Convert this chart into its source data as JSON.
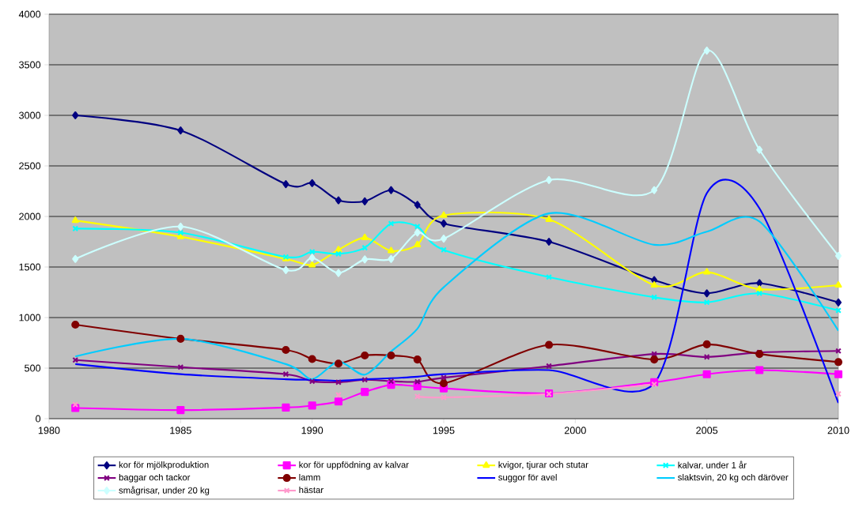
{
  "chart_data": {
    "type": "line",
    "x": [
      1981,
      1985,
      1989,
      1990,
      1991,
      1992,
      1993,
      1994,
      1995,
      1999,
      2003,
      2005,
      2007,
      2010
    ],
    "xlim": [
      1980,
      2010
    ],
    "xticks": [
      1980,
      1985,
      1990,
      1995,
      2000,
      2005,
      2010
    ],
    "ylim": [
      0,
      4000
    ],
    "yticks": [
      0,
      500,
      1000,
      1500,
      2000,
      2500,
      3000,
      3500,
      4000
    ],
    "grid": "y",
    "legend": "bottom",
    "series": [
      {
        "name": "kor för mjölkproduktion",
        "color": "#000080",
        "marker": "diamond",
        "values": [
          3000,
          2850,
          2320,
          2330,
          2160,
          2150,
          2260,
          2115,
          1930,
          1750,
          1370,
          1240,
          1340,
          1150
        ]
      },
      {
        "name": "kor för uppfödning av kalvar",
        "color": "#ff00ff",
        "marker": "square",
        "values": [
          105,
          85,
          110,
          130,
          170,
          265,
          335,
          320,
          300,
          250,
          360,
          440,
          480,
          440
        ]
      },
      {
        "name": "kvigor, tjurar och stutar",
        "color": "#ffff00",
        "marker": "triangle",
        "values": [
          1960,
          1800,
          1580,
          1520,
          1670,
          1790,
          1660,
          1720,
          2010,
          1970,
          1320,
          1450,
          1280,
          1320
        ]
      },
      {
        "name": "kalvar, under 1 år",
        "color": "#00ffff",
        "marker": "cross",
        "values": [
          1880,
          1840,
          1600,
          1650,
          1630,
          1690,
          1930,
          1900,
          1670,
          1400,
          1200,
          1150,
          1240,
          1070
        ]
      },
      {
        "name": "baggar och tackor",
        "color": "#800080",
        "marker": "cross",
        "values": [
          580,
          510,
          440,
          370,
          360,
          385,
          370,
          365,
          405,
          520,
          640,
          610,
          655,
          670
        ]
      },
      {
        "name": "lamm",
        "color": "#800000",
        "marker": "circle",
        "values": [
          930,
          790,
          680,
          590,
          545,
          625,
          625,
          585,
          350,
          730,
          585,
          735,
          640,
          560
        ]
      },
      {
        "name": "suggor för avel",
        "color": "#0000ff",
        "marker": "none",
        "values": [
          540,
          440,
          390,
          385,
          375,
          390,
          400,
          415,
          440,
          480,
          350,
          2230,
          2080,
          155
        ]
      },
      {
        "name": "slaktsvin, 20 kg och däröver",
        "color": "#00ccff",
        "marker": "none",
        "values": [
          615,
          790,
          540,
          390,
          565,
          435,
          665,
          890,
          1300,
          2030,
          1720,
          1850,
          1950,
          870
        ]
      },
      {
        "name": "smågrisar, under 20 kg",
        "color": "#ccffff",
        "marker": "diamond",
        "values": [
          1580,
          1900,
          1470,
          1590,
          1440,
          1575,
          1580,
          1840,
          1780,
          2360,
          2260,
          3640,
          2660,
          1610
        ]
      },
      {
        "name": "hästar",
        "color": "#ff99cc",
        "marker": "cross",
        "values": [
          140,
          null,
          null,
          null,
          235,
          null,
          null,
          220,
          210,
          245,
          340,
          null,
          null,
          245
        ]
      }
    ]
  }
}
